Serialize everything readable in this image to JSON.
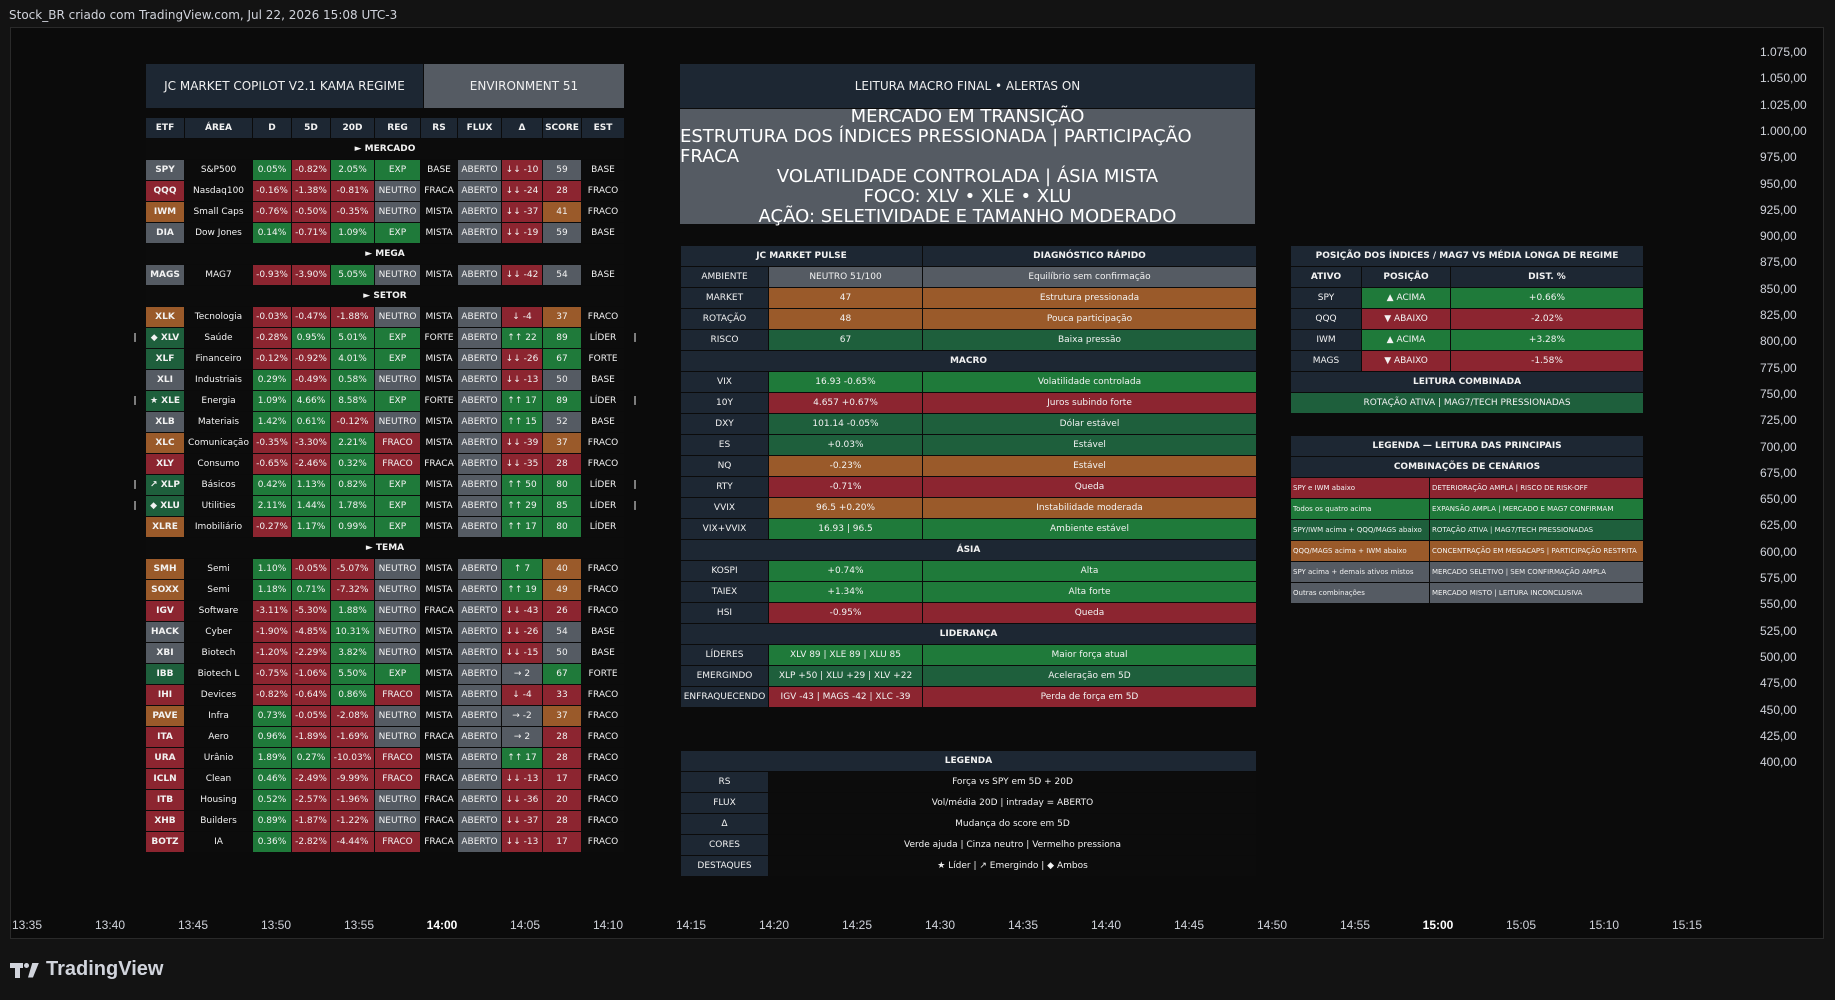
{
  "header": "Stock_BR criado com TradingView.com, Jul 22, 2026 15:08 UTC-3",
  "brand": "TradingView",
  "yaxis": [
    "1.075,00",
    "1.050,00",
    "1.025,00",
    "1.000,00",
    "975,00",
    "950,00",
    "925,00",
    "900,00",
    "875,00",
    "850,00",
    "825,00",
    "800,00",
    "775,00",
    "750,00",
    "725,00",
    "700,00",
    "675,00",
    "650,00",
    "625,00",
    "600,00",
    "575,00",
    "550,00",
    "525,00",
    "500,00",
    "475,00",
    "450,00",
    "425,00",
    "400,00"
  ],
  "xaxis": [
    "13:35",
    "13:40",
    "13:45",
    "13:50",
    "13:55",
    "14:00",
    "14:05",
    "14:10",
    "14:15",
    "14:20",
    "14:25",
    "14:30",
    "14:35",
    "14:40",
    "14:45",
    "14:50",
    "14:55",
    "15:00",
    "15:05",
    "15:10",
    "15:15"
  ],
  "copilot": {
    "title": "JC MARKET COPILOT V2.1 KAMA REGIME",
    "env": "ENVIRONMENT 51",
    "headers": [
      "ETF",
      "ÁREA",
      "D",
      "5D",
      "20D",
      "REG",
      "RS",
      "FLUX",
      "Δ",
      "SCORE",
      "EST"
    ],
    "sections": [
      {
        "label": "► MERCADO",
        "rows": [
          {
            "m": "",
            "etf": "SPY",
            "area": "S&P500",
            "d": "0.05%",
            "d5": "-0.82%",
            "d20": "2.05%",
            "reg": "EXP",
            "rs": "BASE",
            "flux": "ABERTO",
            "delta": "↓↓ -10",
            "score": "59",
            "est": "BASE",
            "me": ""
          },
          {
            "m": "",
            "etf": "QQQ",
            "area": "Nasdaq100",
            "d": "-0.16%",
            "d5": "-1.38%",
            "d20": "-0.81%",
            "reg": "NEUTRO",
            "rs": "FRACA",
            "flux": "ABERTO",
            "delta": "↓↓ -24",
            "score": "28",
            "est": "FRACO",
            "me": ""
          },
          {
            "m": "",
            "etf": "IWM",
            "area": "Small Caps",
            "d": "-0.76%",
            "d5": "-0.50%",
            "d20": "-0.35%",
            "reg": "NEUTRO",
            "rs": "MISTA",
            "flux": "ABERTO",
            "delta": "↓↓ -37",
            "score": "41",
            "est": "FRACO",
            "me": ""
          },
          {
            "m": "",
            "etf": "DIA",
            "area": "Dow Jones",
            "d": "0.14%",
            "d5": "-0.71%",
            "d20": "1.09%",
            "reg": "EXP",
            "rs": "MISTA",
            "flux": "ABERTO",
            "delta": "↓↓ -19",
            "score": "59",
            "est": "BASE",
            "me": ""
          }
        ]
      },
      {
        "label": "► MEGA",
        "rows": [
          {
            "m": "",
            "etf": "MAGS",
            "area": "MAG7",
            "d": "-0.93%",
            "d5": "-3.90%",
            "d20": "5.05%",
            "reg": "NEUTRO",
            "rs": "MISTA",
            "flux": "ABERTO",
            "delta": "↓↓ -42",
            "score": "54",
            "est": "BASE",
            "me": ""
          }
        ]
      },
      {
        "label": "► SETOR",
        "rows": [
          {
            "m": "",
            "etf": "XLK",
            "area": "Tecnologia",
            "d": "-0.03%",
            "d5": "-0.47%",
            "d20": "-1.88%",
            "reg": "NEUTRO",
            "rs": "MISTA",
            "flux": "ABERTO",
            "delta": "↓ -4",
            "score": "37",
            "est": "FRACO",
            "me": ""
          },
          {
            "m": "|",
            "etf": "◆ XLV",
            "area": "Saúde",
            "d": "-0.28%",
            "d5": "0.95%",
            "d20": "5.01%",
            "reg": "EXP",
            "rs": "FORTE",
            "flux": "ABERTO",
            "delta": "↑↑ 22",
            "score": "89",
            "est": "LÍDER",
            "me": "|"
          },
          {
            "m": "",
            "etf": "XLF",
            "area": "Financeiro",
            "d": "-0.12%",
            "d5": "-0.92%",
            "d20": "4.01%",
            "reg": "EXP",
            "rs": "MISTA",
            "flux": "ABERTO",
            "delta": "↓↓ -26",
            "score": "67",
            "est": "FORTE",
            "me": ""
          },
          {
            "m": "",
            "etf": "XLI",
            "area": "Industriais",
            "d": "0.29%",
            "d5": "-0.49%",
            "d20": "0.58%",
            "reg": "NEUTRO",
            "rs": "MISTA",
            "flux": "ABERTO",
            "delta": "↓↓ -13",
            "score": "50",
            "est": "BASE",
            "me": ""
          },
          {
            "m": "|",
            "etf": "★ XLE",
            "area": "Energia",
            "d": "1.09%",
            "d5": "4.66%",
            "d20": "8.58%",
            "reg": "EXP",
            "rs": "FORTE",
            "flux": "ABERTO",
            "delta": "↑↑ 17",
            "score": "89",
            "est": "LÍDER",
            "me": "|"
          },
          {
            "m": "",
            "etf": "XLB",
            "area": "Materiais",
            "d": "1.42%",
            "d5": "0.61%",
            "d20": "-0.12%",
            "reg": "NEUTRO",
            "rs": "MISTA",
            "flux": "ABERTO",
            "delta": "↑↑ 15",
            "score": "52",
            "est": "BASE",
            "me": ""
          },
          {
            "m": "",
            "etf": "XLC",
            "area": "Comunicação",
            "d": "-0.35%",
            "d5": "-3.30%",
            "d20": "2.21%",
            "reg": "FRACO",
            "rs": "MISTA",
            "flux": "ABERTO",
            "delta": "↓↓ -39",
            "score": "37",
            "est": "FRACO",
            "me": ""
          },
          {
            "m": "",
            "etf": "XLY",
            "area": "Consumo",
            "d": "-0.65%",
            "d5": "-2.46%",
            "d20": "0.32%",
            "reg": "FRACO",
            "rs": "FRACA",
            "flux": "ABERTO",
            "delta": "↓↓ -35",
            "score": "28",
            "est": "FRACO",
            "me": ""
          },
          {
            "m": "|",
            "etf": "↗ XLP",
            "area": "Básicos",
            "d": "0.42%",
            "d5": "1.13%",
            "d20": "0.82%",
            "reg": "EXP",
            "rs": "MISTA",
            "flux": "ABERTO",
            "delta": "↑↑ 50",
            "score": "80",
            "est": "LÍDER",
            "me": "|"
          },
          {
            "m": "|",
            "etf": "◆ XLU",
            "area": "Utilities",
            "d": "2.11%",
            "d5": "1.44%",
            "d20": "1.78%",
            "reg": "EXP",
            "rs": "MISTA",
            "flux": "ABERTO",
            "delta": "↑↑ 29",
            "score": "85",
            "est": "LÍDER",
            "me": "|"
          },
          {
            "m": "",
            "etf": "XLRE",
            "area": "Imobiliário",
            "d": "-0.27%",
            "d5": "1.17%",
            "d20": "0.99%",
            "reg": "EXP",
            "rs": "MISTA",
            "flux": "ABERTO",
            "delta": "↑↑ 17",
            "score": "80",
            "est": "LÍDER",
            "me": ""
          }
        ]
      },
      {
        "label": "► TEMA",
        "rows": [
          {
            "m": "",
            "etf": "SMH",
            "area": "Semi",
            "d": "1.10%",
            "d5": "-0.05%",
            "d20": "-5.07%",
            "reg": "NEUTRO",
            "rs": "MISTA",
            "flux": "ABERTO",
            "delta": "↑ 7",
            "score": "40",
            "est": "FRACO",
            "me": ""
          },
          {
            "m": "",
            "etf": "SOXX",
            "area": "Semi",
            "d": "1.18%",
            "d5": "0.71%",
            "d20": "-7.32%",
            "reg": "NEUTRO",
            "rs": "MISTA",
            "flux": "ABERTO",
            "delta": "↑↑ 19",
            "score": "49",
            "est": "FRACO",
            "me": ""
          },
          {
            "m": "",
            "etf": "IGV",
            "area": "Software",
            "d": "-3.11%",
            "d5": "-5.30%",
            "d20": "1.88%",
            "reg": "NEUTRO",
            "rs": "FRACA",
            "flux": "ABERTO",
            "delta": "↓↓ -43",
            "score": "26",
            "est": "FRACO",
            "me": ""
          },
          {
            "m": "",
            "etf": "HACK",
            "area": "Cyber",
            "d": "-1.90%",
            "d5": "-4.85%",
            "d20": "10.31%",
            "reg": "NEUTRO",
            "rs": "MISTA",
            "flux": "ABERTO",
            "delta": "↓↓ -26",
            "score": "54",
            "est": "BASE",
            "me": ""
          },
          {
            "m": "",
            "etf": "XBI",
            "area": "Biotech",
            "d": "-1.20%",
            "d5": "-2.29%",
            "d20": "3.82%",
            "reg": "NEUTRO",
            "rs": "MISTA",
            "flux": "ABERTO",
            "delta": "↓↓ -15",
            "score": "50",
            "est": "BASE",
            "me": ""
          },
          {
            "m": "",
            "etf": "IBB",
            "area": "Biotech L",
            "d": "-0.75%",
            "d5": "-1.06%",
            "d20": "5.50%",
            "reg": "EXP",
            "rs": "MISTA",
            "flux": "ABERTO",
            "delta": "→ 2",
            "score": "67",
            "est": "FORTE",
            "me": ""
          },
          {
            "m": "",
            "etf": "IHI",
            "area": "Devices",
            "d": "-0.82%",
            "d5": "-0.64%",
            "d20": "0.86%",
            "reg": "FRACO",
            "rs": "MISTA",
            "flux": "ABERTO",
            "delta": "↓ -4",
            "score": "33",
            "est": "FRACO",
            "me": ""
          },
          {
            "m": "",
            "etf": "PAVE",
            "area": "Infra",
            "d": "0.73%",
            "d5": "-0.05%",
            "d20": "-2.08%",
            "reg": "NEUTRO",
            "rs": "MISTA",
            "flux": "ABERTO",
            "delta": "→ -2",
            "score": "37",
            "est": "FRACO",
            "me": ""
          },
          {
            "m": "",
            "etf": "ITA",
            "area": "Aero",
            "d": "0.96%",
            "d5": "-1.89%",
            "d20": "-1.69%",
            "reg": "NEUTRO",
            "rs": "FRACA",
            "flux": "ABERTO",
            "delta": "→ 2",
            "score": "28",
            "est": "FRACO",
            "me": ""
          },
          {
            "m": "",
            "etf": "URA",
            "area": "Urânio",
            "d": "1.89%",
            "d5": "0.27%",
            "d20": "-10.03%",
            "reg": "FRACO",
            "rs": "MISTA",
            "flux": "ABERTO",
            "delta": "↑↑ 17",
            "score": "28",
            "est": "FRACO",
            "me": ""
          },
          {
            "m": "",
            "etf": "ICLN",
            "area": "Clean",
            "d": "0.46%",
            "d5": "-2.49%",
            "d20": "-9.99%",
            "reg": "FRACO",
            "rs": "FRACA",
            "flux": "ABERTO",
            "delta": "↓↓ -13",
            "score": "17",
            "est": "FRACO",
            "me": ""
          },
          {
            "m": "",
            "etf": "ITB",
            "area": "Housing",
            "d": "0.52%",
            "d5": "-2.57%",
            "d20": "-1.96%",
            "reg": "NEUTRO",
            "rs": "FRACA",
            "flux": "ABERTO",
            "delta": "↓↓ -36",
            "score": "20",
            "est": "FRACO",
            "me": ""
          },
          {
            "m": "",
            "etf": "XHB",
            "area": "Builders",
            "d": "0.89%",
            "d5": "-1.87%",
            "d20": "-1.22%",
            "reg": "NEUTRO",
            "rs": "FRACA",
            "flux": "ABERTO",
            "delta": "↓↓ -37",
            "score": "28",
            "est": "FRACO",
            "me": ""
          },
          {
            "m": "",
            "etf": "BOTZ",
            "area": "IA",
            "d": "0.36%",
            "d5": "-2.82%",
            "d20": "-4.44%",
            "reg": "FRACO",
            "rs": "FRACA",
            "flux": "ABERTO",
            "delta": "↓↓ -13",
            "score": "17",
            "est": "FRACO",
            "me": ""
          }
        ]
      }
    ]
  },
  "macro": {
    "title": "LEITURA MACRO FINAL  •  ALERTAS ON",
    "lines": [
      "MERCADO EM TRANSIÇÃO",
      "ESTRUTURA DOS ÍNDICES PRESSIONADA | PARTICIPAÇÃO FRACA",
      "VOLATILIDADE CONTROLADA | ÁSIA MISTA",
      "FOCO: XLV • XLE • XLU",
      "AÇÃO: SELETIVIDADE E TAMANHO MODERADO"
    ]
  },
  "pulse": {
    "h1": "JC MARKET PULSE",
    "h2": "DIAGNÓSTICO RÁPIDO",
    "top": [
      {
        "k": "AMBIENTE",
        "v": "NEUTRO  51/100",
        "dg": "Equilíbrio sem confirmação",
        "c": "gy"
      },
      {
        "k": "MARKET",
        "v": "47",
        "dg": "Estrutura pressionada",
        "c": "o"
      },
      {
        "k": "ROTAÇÃO",
        "v": "48",
        "dg": "Pouca participação",
        "c": "o"
      },
      {
        "k": "RISCO",
        "v": "67",
        "dg": "Baixa pressão",
        "c": "gd"
      }
    ],
    "macro_label": "MACRO",
    "macro": [
      {
        "k": "VIX",
        "v": "16.93  -0.65%",
        "dg": "Volatilidade controlada",
        "c": "g"
      },
      {
        "k": "10Y",
        "v": "4.657  +0.67%",
        "dg": "Juros subindo forte",
        "c": "r"
      },
      {
        "k": "DXY",
        "v": "101.14  -0.05%",
        "dg": "Dólar estável",
        "c": "gd"
      },
      {
        "k": "ES",
        "v": "+0.03%",
        "dg": "Estável",
        "c": "gd"
      },
      {
        "k": "NQ",
        "v": "-0.23%",
        "dg": "Estável",
        "c": "o"
      },
      {
        "k": "RTY",
        "v": "-0.71%",
        "dg": "Queda",
        "c": "r"
      },
      {
        "k": "VVIX",
        "v": "96.5  +0.20%",
        "dg": "Instabilidade moderada",
        "c": "o"
      },
      {
        "k": "VIX+VVIX",
        "v": "16.93  |  96.5",
        "dg": "Ambiente estável",
        "c": "g"
      }
    ],
    "asia_label": "ÁSIA",
    "asia": [
      {
        "k": "KOSPI",
        "v": "+0.74%",
        "dg": "Alta",
        "c": "g"
      },
      {
        "k": "TAIEX",
        "v": "+1.34%",
        "dg": "Alta forte",
        "c": "g"
      },
      {
        "k": "HSI",
        "v": "-0.95%",
        "dg": "Queda",
        "c": "r"
      }
    ],
    "lead_label": "LIDERANÇA",
    "lead": [
      {
        "k": "LÍDERES",
        "v": "XLV 89  |  XLE 89  |  XLU 85",
        "dg": "Maior força atual",
        "c": "g"
      },
      {
        "k": "EMERGINDO",
        "v": "XLP +50  |  XLU +29  |  XLV +22",
        "dg": "Aceleração em 5D",
        "c": "gd"
      },
      {
        "k": "ENFRAQUECENDO",
        "v": "IGV -43  |  MAGS -42  |  XLC -39",
        "dg": "Perda de força em 5D",
        "c": "r"
      }
    ]
  },
  "legend": {
    "title": "LEGENDA",
    "rows": [
      {
        "k": "RS",
        "v": "Força vs SPY em 5D + 20D"
      },
      {
        "k": "FLUX",
        "v": "Vol/média 20D | intraday = ABERTO"
      },
      {
        "k": "Δ",
        "v": "Mudança do score em 5D"
      },
      {
        "k": "CORES",
        "v": "Verde ajuda | Cinza neutro | Vermelho pressiona"
      },
      {
        "k": "DESTAQUES",
        "v": "★ Líder | ↗ Emergindo | ◆ Ambos"
      }
    ]
  },
  "position": {
    "title": "POSIÇÃO DOS ÍNDICES / MAG7 VS MÉDIA LONGA DE REGIME",
    "headers": [
      "ATIVO",
      "POSIÇÃO",
      "DIST. %"
    ],
    "rows": [
      {
        "a": "SPY",
        "p": "▲ ACIMA",
        "d": "+0.66%",
        "c": "g"
      },
      {
        "a": "QQQ",
        "p": "▼ ABAIXO",
        "d": "-2.02%",
        "c": "r"
      },
      {
        "a": "IWM",
        "p": "▲ ACIMA",
        "d": "+3.28%",
        "c": "g"
      },
      {
        "a": "MAGS",
        "p": "▼ ABAIXO",
        "d": "-1.58%",
        "c": "r"
      }
    ],
    "combined_label": "LEITURA COMBINADA",
    "combined": "ROTAÇÃO ATIVA | MAG7/TECH PRESSIONADAS"
  },
  "scenarios": {
    "title1": "LEGENDA — LEITURA DAS PRINCIPAIS",
    "title2": "COMBINAÇÕES DE CENÁRIOS",
    "rows": [
      {
        "k": "SPY e IWM abaixo",
        "v": "DETERIORAÇÃO AMPLA | RISCO DE RISK-OFF",
        "c": "r"
      },
      {
        "k": "Todos os quatro acima",
        "v": "EXPANSÃO AMPLA | MERCADO E MAG7 CONFIRMAM",
        "c": "g"
      },
      {
        "k": "SPY/IWM acima + QQQ/MAGS abaixo",
        "v": "ROTAÇÃO ATIVA | MAG7/TECH PRESSIONADAS",
        "c": "gd"
      },
      {
        "k": "QQQ/MAGS acima + IWM abaixo",
        "v": "CONCENTRAÇÃO EM MEGACAPS | PARTICIPAÇÃO RESTRITA",
        "c": "o"
      },
      {
        "k": "SPY acima + demais ativos mistos",
        "v": "MERCADO SELETIVO | SEM CONFIRMAÇÃO AMPLA",
        "c": "gy"
      },
      {
        "k": "Outras combinações",
        "v": "MERCADO MISTO | LEITURA INCONCLUSIVA",
        "c": "gy"
      }
    ]
  },
  "colors": {
    "green": "#1f7a3a",
    "dark_green": "#1e5f3c",
    "red": "#8c2530",
    "orange": "#9a5a2a",
    "gray": "#555b63",
    "header": "#1d2733"
  }
}
